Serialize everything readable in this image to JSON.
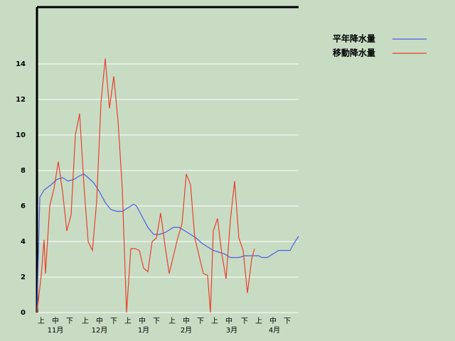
{
  "chart_data": {
    "type": "line",
    "xlim": [
      0,
      184
    ],
    "ylim": [
      0,
      17.2
    ],
    "yticks": [
      0,
      2,
      4,
      6,
      8,
      10,
      12,
      14
    ],
    "xticks": [
      {
        "value": 3,
        "label": "上"
      },
      {
        "value": 13,
        "label": "中"
      },
      {
        "value": 23,
        "label": "下"
      },
      {
        "value": 34,
        "label": "上"
      },
      {
        "value": 44,
        "label": "中"
      },
      {
        "value": 54,
        "label": "下"
      },
      {
        "value": 64,
        "label": "上"
      },
      {
        "value": 74,
        "label": "中"
      },
      {
        "value": 84,
        "label": "下"
      },
      {
        "value": 95,
        "label": "上"
      },
      {
        "value": 105,
        "label": "中"
      },
      {
        "value": 115,
        "label": "下"
      },
      {
        "value": 125,
        "label": "上"
      },
      {
        "value": 135,
        "label": "中"
      },
      {
        "value": 146,
        "label": "下"
      },
      {
        "value": 156,
        "label": "上"
      },
      {
        "value": 166,
        "label": "中"
      },
      {
        "value": 176,
        "label": "下"
      }
    ],
    "month_ticks": [
      {
        "value": 13,
        "label": "11月"
      },
      {
        "value": 44,
        "label": "12月"
      },
      {
        "value": 75,
        "label": "1月"
      },
      {
        "value": 105,
        "label": "2月"
      },
      {
        "value": 137,
        "label": "3月"
      },
      {
        "value": 167,
        "label": "4月"
      }
    ],
    "grid": true,
    "legend": "top-right",
    "series": [
      {
        "name": "平年降水量",
        "color": "#4a5fe0",
        "x": [
          0,
          2,
          5,
          10,
          14,
          18,
          22,
          26,
          30,
          33,
          36,
          40,
          44,
          48,
          52,
          56,
          60,
          62,
          66,
          68,
          70,
          74,
          78,
          82,
          86,
          90,
          94,
          96,
          100,
          104,
          108,
          112,
          116,
          120,
          124,
          128,
          132,
          136,
          142,
          146,
          152,
          156,
          158,
          162,
          166,
          170,
          176,
          178,
          180,
          184
        ],
        "values": [
          0,
          6.5,
          6.9,
          7.2,
          7.5,
          7.6,
          7.4,
          7.5,
          7.7,
          7.8,
          7.6,
          7.3,
          6.8,
          6.2,
          5.8,
          5.7,
          5.7,
          5.8,
          6.0,
          6.1,
          6.0,
          5.4,
          4.8,
          4.4,
          4.4,
          4.5,
          4.7,
          4.8,
          4.8,
          4.6,
          4.4,
          4.2,
          3.9,
          3.7,
          3.5,
          3.4,
          3.3,
          3.1,
          3.1,
          3.2,
          3.2,
          3.2,
          3.1,
          3.1,
          3.3,
          3.5,
          3.5,
          3.5,
          3.8,
          4.3
        ]
      },
      {
        "name": "移動降水量",
        "color": "#e8402c",
        "x": [
          0,
          3,
          5,
          6,
          9,
          12,
          15,
          18,
          21,
          24,
          27,
          30,
          33,
          36,
          39,
          42,
          45,
          48,
          51,
          54,
          57,
          60,
          63,
          66,
          69,
          72,
          75,
          78,
          81,
          84,
          87,
          90,
          93,
          96,
          99,
          102,
          105,
          108,
          111,
          114,
          117,
          120,
          122,
          124,
          127,
          130,
          133,
          136,
          139,
          142,
          145,
          148,
          151,
          153
        ],
        "values": [
          0,
          2.1,
          4.1,
          2.2,
          6.0,
          7.0,
          8.5,
          6.8,
          4.6,
          5.5,
          10.0,
          11.2,
          7.2,
          4.0,
          3.5,
          6.3,
          11.8,
          14.3,
          11.5,
          13.3,
          10.8,
          7.0,
          0,
          3.6,
          3.6,
          3.5,
          2.5,
          2.3,
          4.0,
          4.2,
          5.6,
          3.8,
          2.2,
          3.2,
          4.2,
          5.0,
          7.8,
          7.2,
          4.2,
          3.2,
          2.2,
          2.1,
          0,
          4.6,
          5.3,
          3.3,
          1.9,
          5.2,
          7.4,
          4.2,
          3.5,
          1.1,
          3.0,
          3.6
        ]
      }
    ]
  }
}
